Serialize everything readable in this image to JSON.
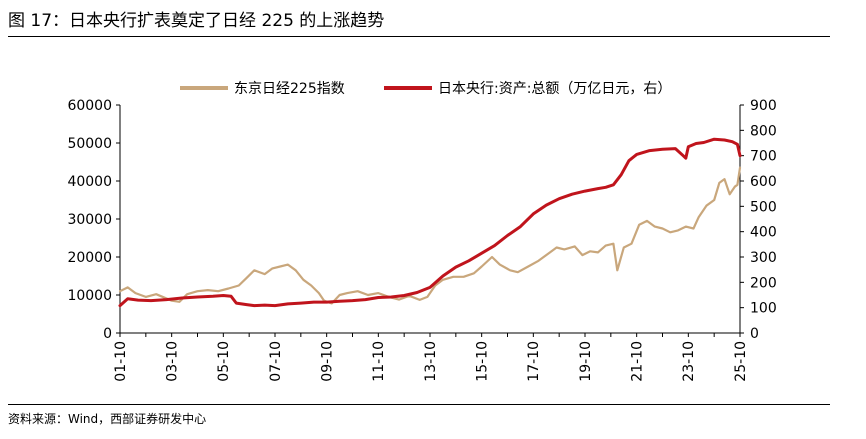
{
  "header": {
    "title": "图 17：日本央行扩表奠定了日经 225 的上涨趋势"
  },
  "footer": {
    "source": "资料来源：Wind，西部证券研发中心"
  },
  "chart_data": {
    "type": "line",
    "title": "",
    "legend_position": "top",
    "grid": false,
    "x_ticks": [
      "01-10",
      "03-10",
      "05-10",
      "07-10",
      "09-10",
      "11-10",
      "13-10",
      "15-10",
      "17-10",
      "19-10",
      "21-10",
      "23-10",
      "25-10"
    ],
    "x_range": [
      2001.0,
      2025.0
    ],
    "y_left": {
      "range": [
        0,
        60000
      ],
      "ticks": [
        0,
        10000,
        20000,
        30000,
        40000,
        50000,
        60000
      ]
    },
    "y_right": {
      "range": [
        0,
        900
      ],
      "ticks": [
        0,
        100,
        200,
        300,
        400,
        500,
        600,
        700,
        800,
        900
      ]
    },
    "series": [
      {
        "name": "东京日经225指数",
        "axis": "left",
        "color": "#C9A77C",
        "x": [
          2001.0,
          2001.3,
          2001.6,
          2002.0,
          2002.4,
          2003.0,
          2003.3,
          2003.6,
          2004.0,
          2004.4,
          2004.8,
          2005.2,
          2005.6,
          2005.9,
          2006.2,
          2006.6,
          2006.9,
          2007.2,
          2007.5,
          2007.8,
          2008.1,
          2008.4,
          2008.7,
          2008.9,
          2009.2,
          2009.5,
          2009.8,
          2010.2,
          2010.6,
          2011.0,
          2011.4,
          2011.8,
          2012.2,
          2012.6,
          2012.9,
          2013.2,
          2013.5,
          2013.9,
          2014.3,
          2014.7,
          2015.0,
          2015.4,
          2015.7,
          2016.1,
          2016.4,
          2016.8,
          2017.2,
          2017.6,
          2017.9,
          2018.2,
          2018.6,
          2018.9,
          2019.2,
          2019.5,
          2019.8,
          2020.1,
          2020.25,
          2020.5,
          2020.8,
          2021.1,
          2021.4,
          2021.7,
          2022.0,
          2022.3,
          2022.6,
          2022.9,
          2023.2,
          2023.4,
          2023.7,
          2024.0,
          2024.2,
          2024.4,
          2024.6,
          2024.8,
          2024.9,
          2025.0
        ],
        "values": [
          11000,
          12000,
          10500,
          9500,
          10200,
          8500,
          8200,
          10200,
          11000,
          11300,
          11000,
          11700,
          12500,
          14500,
          16500,
          15500,
          17000,
          17500,
          18000,
          16500,
          14000,
          12500,
          10500,
          8500,
          7800,
          10000,
          10500,
          11000,
          10000,
          10500,
          9500,
          8800,
          9800,
          8700,
          9500,
          12500,
          14000,
          14800,
          14800,
          15700,
          17500,
          20000,
          18000,
          16500,
          16000,
          17500,
          19000,
          21000,
          22500,
          22000,
          22800,
          20500,
          21500,
          21200,
          23000,
          23500,
          16500,
          22500,
          23500,
          28500,
          29500,
          28000,
          27500,
          26500,
          27000,
          28000,
          27500,
          30500,
          33500,
          35000,
          39500,
          40500,
          36500,
          38500,
          39000,
          43500
        ]
      },
      {
        "name": "日本央行:资产:总额（万亿日元，右）",
        "axis": "right",
        "color": "#C0141C",
        "x": [
          2001.0,
          2001.3,
          2001.7,
          2002.2,
          2002.8,
          2003.4,
          2004.0,
          2004.6,
          2005.0,
          2005.3,
          2005.5,
          2005.9,
          2006.2,
          2006.6,
          2007.0,
          2007.5,
          2008.0,
          2008.5,
          2009.0,
          2009.5,
          2010.0,
          2010.5,
          2011.0,
          2011.5,
          2012.0,
          2012.5,
          2013.0,
          2013.5,
          2014.0,
          2014.5,
          2015.0,
          2015.5,
          2016.0,
          2016.5,
          2017.0,
          2017.5,
          2018.0,
          2018.5,
          2019.0,
          2019.5,
          2019.8,
          2020.1,
          2020.4,
          2020.7,
          2021.0,
          2021.5,
          2022.0,
          2022.5,
          2022.8,
          2022.9,
          2023.0,
          2023.3,
          2023.6,
          2024.0,
          2024.4,
          2024.7,
          2024.9,
          2025.0
        ],
        "values": [
          108,
          135,
          130,
          128,
          132,
          138,
          142,
          145,
          148,
          145,
          118,
          112,
          108,
          110,
          108,
          115,
          118,
          122,
          122,
          125,
          128,
          132,
          140,
          142,
          148,
          160,
          180,
          225,
          260,
          285,
          315,
          345,
          385,
          420,
          470,
          505,
          530,
          548,
          560,
          570,
          575,
          585,
          625,
          680,
          705,
          720,
          725,
          728,
          700,
          690,
          735,
          748,
          752,
          765,
          762,
          755,
          745,
          700
        ]
      }
    ]
  }
}
